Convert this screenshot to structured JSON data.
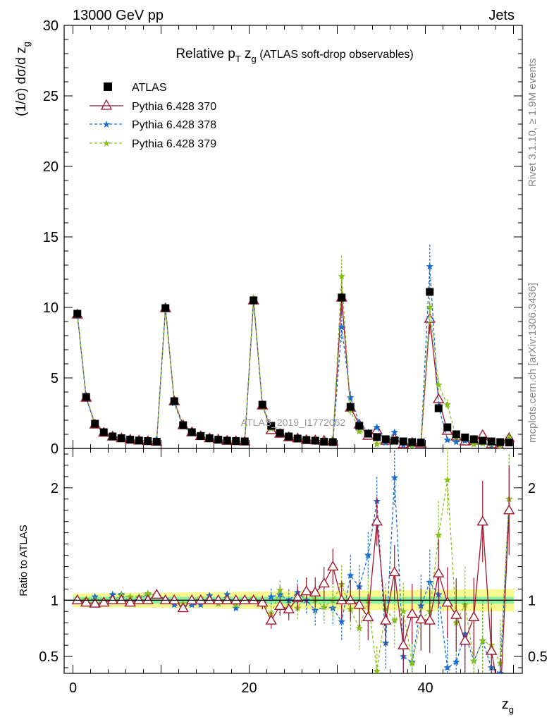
{
  "header": {
    "left": "13000 GeV pp",
    "right": "Jets"
  },
  "title": {
    "prefix": "Relative ",
    "p": "p",
    "p_sub": "T",
    "z": " z",
    "z_sub": "g",
    "suffix": " (ATLAS soft-drop observables)"
  },
  "side_labels": {
    "rivet": "Rivet 3.1.10, ≥ 1.9M events",
    "mcplots": "mcplots.cern.ch [arXiv:1306.3436]"
  },
  "watermark": "ATLAS_2019_I1772062",
  "colors": {
    "data": "#000000",
    "p370": "#a01830",
    "p378": "#1a6fd4",
    "p379": "#88c020",
    "band_inner": "#88f0a0",
    "band_outer": "#f8f890"
  },
  "chart_data": [
    {
      "type": "line",
      "ylabel_parts": {
        "a": "(1/σ) dσ/d z",
        "sub": "g"
      },
      "xlabel": "z",
      "xlabel_sub": "g",
      "xlim": [
        -1,
        51
      ],
      "ylim": [
        0,
        30
      ],
      "yticks": [
        0,
        5,
        10,
        15,
        20,
        25,
        30
      ],
      "ytick_labels": [
        "0",
        "5",
        "10",
        "15",
        "20",
        "25",
        "30"
      ],
      "x": [
        0.5,
        1.5,
        2.5,
        3.5,
        4.5,
        5.5,
        6.5,
        7.5,
        8.5,
        9.5,
        10.5,
        11.5,
        12.5,
        13.5,
        14.5,
        15.5,
        16.5,
        17.5,
        18.5,
        19.5,
        20.5,
        21.5,
        22.5,
        23.5,
        24.5,
        25.5,
        26.5,
        27.5,
        28.5,
        29.5,
        30.5,
        31.5,
        32.5,
        33.5,
        34.5,
        35.5,
        36.5,
        37.5,
        38.5,
        39.5,
        40.5,
        41.5,
        42.5,
        43.5,
        44.5,
        45.5,
        46.5,
        47.5,
        48.5,
        49.5
      ],
      "legend": [
        "ATLAS",
        "Pythia 6.428 370",
        "Pythia 6.428 378",
        "Pythia 6.428 379"
      ],
      "legend_position": "top-left",
      "series": [
        {
          "name": "ATLAS",
          "values": [
            9.55,
            3.65,
            1.75,
            1.15,
            0.85,
            0.72,
            0.63,
            0.56,
            0.52,
            0.48,
            9.95,
            3.35,
            1.65,
            1.15,
            0.88,
            0.72,
            0.62,
            0.55,
            0.52,
            0.5,
            10.5,
            3.1,
            1.6,
            1.1,
            0.85,
            0.7,
            0.6,
            0.55,
            0.48,
            0.45,
            10.7,
            2.95,
            1.6,
            1.05,
            0.8,
            0.65,
            0.55,
            0.5,
            0.45,
            0.42,
            11.1,
            2.85,
            1.5,
            1.0,
            0.78,
            0.65,
            0.55,
            0.5,
            0.45,
            0.42
          ]
        },
        {
          "name": "Pythia 6.428 370",
          "values": [
            9.5,
            3.6,
            1.7,
            1.12,
            0.85,
            0.72,
            0.62,
            0.56,
            0.52,
            0.48,
            9.95,
            3.35,
            1.65,
            1.15,
            0.88,
            0.72,
            0.63,
            0.55,
            0.52,
            0.5,
            10.5,
            3.05,
            1.3,
            1.05,
            0.8,
            0.72,
            0.6,
            0.58,
            0.55,
            0.5,
            10.7,
            2.9,
            1.7,
            0.9,
            1.3,
            0.55,
            0.7,
            0.3,
            0.4,
            0.35,
            9.2,
            3.5,
            1.25,
            0.85,
            0.5,
            0.55,
            0.95,
            0.3,
            0.05,
            0.75
          ]
        },
        {
          "name": "Pythia 6.428 378",
          "values": [
            9.6,
            3.55,
            1.8,
            1.1,
            0.9,
            0.75,
            0.62,
            0.58,
            0.55,
            0.5,
            10.05,
            3.2,
            1.55,
            1.1,
            0.85,
            0.75,
            0.6,
            0.58,
            0.48,
            0.5,
            10.6,
            3.0,
            1.65,
            1.15,
            0.85,
            0.75,
            0.6,
            0.5,
            0.45,
            0.42,
            8.6,
            3.6,
            1.8,
            1.15,
            1.5,
            0.4,
            1.15,
            0.25,
            0.2,
            0.4,
            12.9,
            3.0,
            0.6,
            0.45,
            0.55,
            0.3,
            0.35,
            0.2,
            0.2,
            0.8
          ]
        },
        {
          "name": "Pythia 6.428 379",
          "values": [
            9.5,
            3.7,
            1.75,
            1.15,
            0.85,
            0.75,
            0.65,
            0.58,
            0.55,
            0.5,
            9.9,
            3.3,
            1.6,
            1.15,
            0.9,
            0.72,
            0.6,
            0.56,
            0.5,
            0.5,
            10.7,
            3.05,
            1.4,
            1.2,
            0.8,
            0.65,
            0.65,
            0.55,
            0.45,
            0.45,
            12.2,
            2.7,
            1.2,
            1.05,
            0.3,
            0.6,
            0.45,
            0.45,
            0.2,
            0.35,
            10.0,
            4.5,
            3.1,
            0.8,
            0.75,
            0.3,
            0.35,
            0.3,
            0.2,
            0.8
          ]
        }
      ]
    },
    {
      "type": "line",
      "ylabel": "Ratio to ATLAS",
      "xlim": [
        -1,
        51
      ],
      "ylim": [
        0.35,
        2.35
      ],
      "yticks": [
        0.5,
        1,
        2
      ],
      "ytick_labels": [
        "0.5",
        "1",
        "2"
      ],
      "xticks": [
        0,
        20,
        40
      ],
      "xtick_labels": [
        "0",
        "20",
        "40"
      ],
      "x": [
        0.5,
        1.5,
        2.5,
        3.5,
        4.5,
        5.5,
        6.5,
        7.5,
        8.5,
        9.5,
        10.5,
        11.5,
        12.5,
        13.5,
        14.5,
        15.5,
        16.5,
        17.5,
        18.5,
        19.5,
        20.5,
        21.5,
        22.5,
        23.5,
        24.5,
        25.5,
        26.5,
        27.5,
        28.5,
        29.5,
        30.5,
        31.5,
        32.5,
        33.5,
        34.5,
        35.5,
        36.5,
        37.5,
        38.5,
        39.5,
        40.5,
        41.5,
        42.5,
        43.5,
        44.5,
        45.5,
        46.5,
        47.5,
        48.5,
        49.5
      ],
      "series": [
        {
          "name": "Pythia 6.428 370",
          "values": [
            1.0,
            0.98,
            0.97,
            0.98,
            1.0,
            1.0,
            0.98,
            1.0,
            1.0,
            1.05,
            1.0,
            1.0,
            0.93,
            1.0,
            1.0,
            1.0,
            1.0,
            1.0,
            1.0,
            1.0,
            1.0,
            0.98,
            0.82,
            0.95,
            0.92,
            1.02,
            1.08,
            1.07,
            1.15,
            1.3,
            1.0,
            1.0,
            0.96,
            0.85,
            1.7,
            0.82,
            1.25,
            0.6,
            0.88,
            0.83,
            0.82,
            1.24,
            0.98,
            0.87,
            0.64,
            0.85,
            1.7,
            0.55,
            0.1,
            1.8
          ]
        },
        {
          "name": "Pythia 6.428 378",
          "values": [
            1.0,
            0.97,
            1.03,
            0.97,
            1.05,
            1.05,
            0.98,
            1.02,
            1.05,
            1.05,
            1.01,
            0.96,
            0.94,
            0.96,
            0.96,
            1.04,
            0.97,
            1.05,
            0.93,
            1.0,
            1.01,
            0.97,
            1.03,
            1.05,
            1.0,
            1.07,
            1.0,
            0.91,
            0.94,
            0.93,
            0.81,
            1.22,
            1.12,
            1.4,
            1.88,
            0.62,
            2.09,
            0.5,
            0.45,
            0.95,
            1.16,
            1.05,
            0.4,
            0.45,
            0.7,
            0.46,
            0.64,
            0.4,
            0.35,
            1.9
          ]
        },
        {
          "name": "Pythia 6.428 379",
          "values": [
            1.0,
            1.01,
            1.0,
            1.0,
            1.0,
            1.04,
            1.03,
            1.03,
            1.06,
            1.04,
            0.99,
            0.99,
            0.97,
            1.0,
            1.02,
            1.0,
            0.97,
            1.02,
            0.96,
            1.0,
            1.02,
            0.98,
            0.88,
            1.09,
            0.94,
            0.93,
            1.08,
            1.0,
            0.94,
            1.0,
            1.14,
            0.92,
            0.75,
            1.0,
            0.37,
            0.92,
            0.82,
            0.9,
            0.44,
            0.83,
            0.9,
            1.58,
            2.07,
            0.8,
            0.96,
            0.46,
            0.64,
            0.6,
            0.44,
            1.9
          ]
        }
      ]
    }
  ]
}
